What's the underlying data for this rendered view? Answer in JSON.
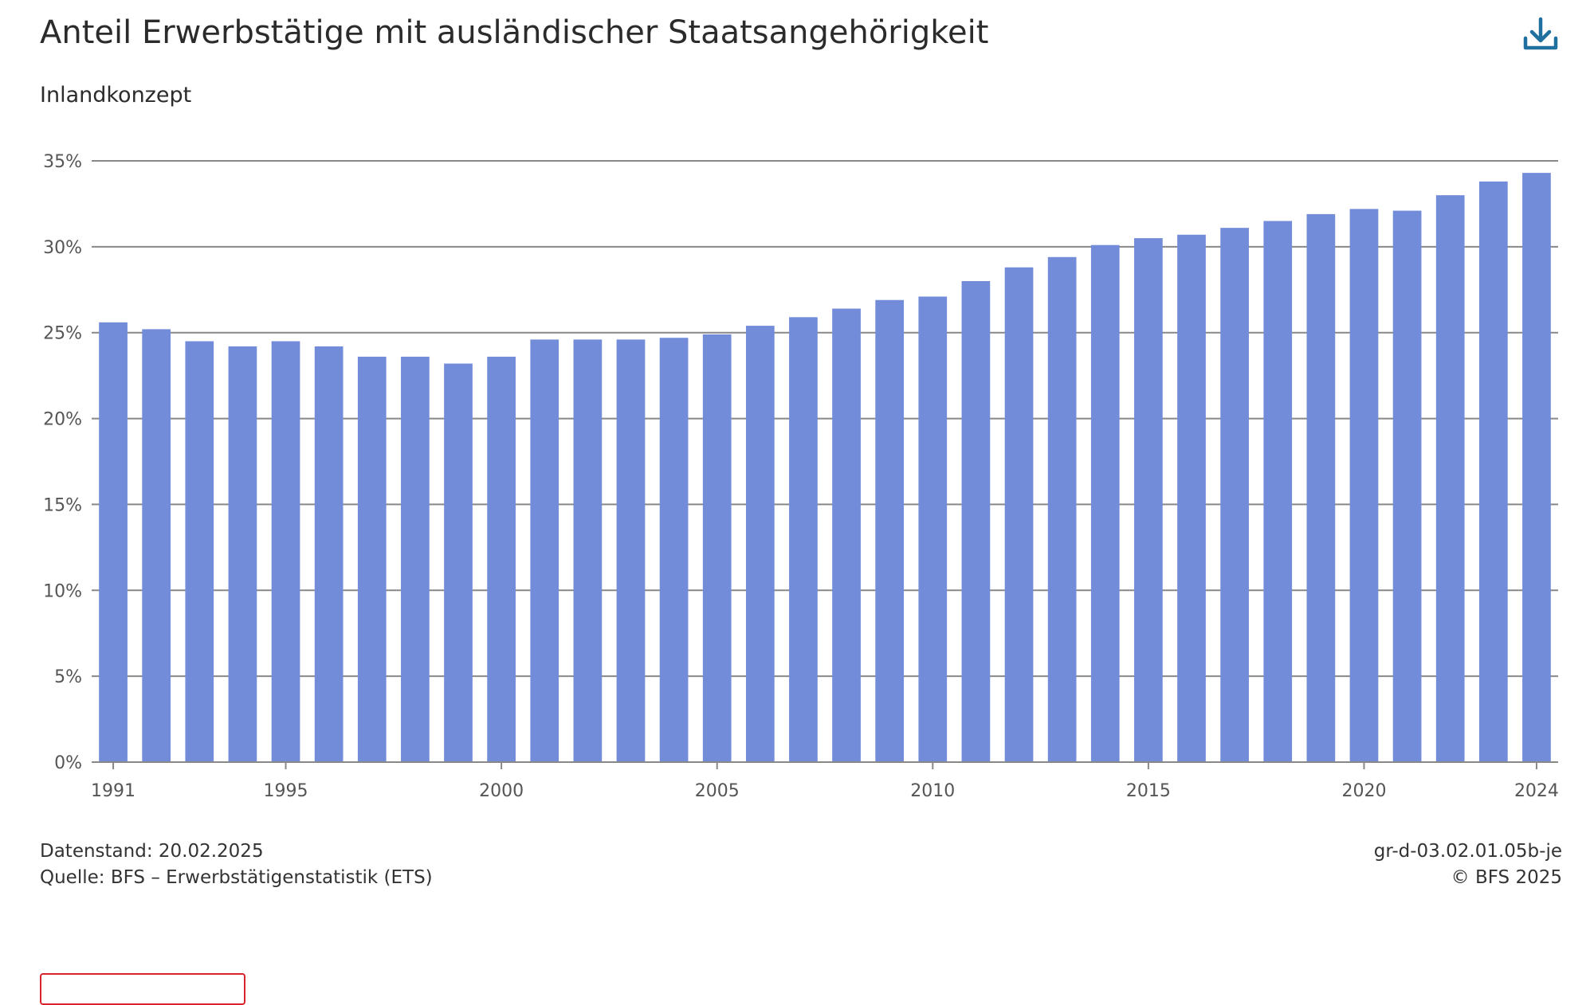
{
  "header": {
    "title": "Anteil Erwerbstätige mit ausländischer Staatsangehörigkeit",
    "subtitle": "Inlandkonzept",
    "download_icon": "download-icon"
  },
  "footer": {
    "datenstand": "Datenstand: 20.02.2025",
    "quelle": "Quelle: BFS – Erwerbstätigenstatistik (ETS)",
    "chart_id": "gr-d-03.02.01.05b-je",
    "copyright": "© BFS 2025"
  },
  "colors": {
    "bar": "#738cd9",
    "grid": "#888888",
    "accent": "#1f6f9f",
    "button_border": "#d8232a"
  },
  "chart_data": {
    "type": "bar",
    "title": "Anteil Erwerbstätige mit ausländischer Staatsangehörigkeit",
    "subtitle": "Inlandkonzept",
    "xlabel": "",
    "ylabel": "",
    "ylim": [
      0,
      35
    ],
    "y_ticks": [
      0,
      5,
      10,
      15,
      20,
      25,
      30,
      35
    ],
    "y_tick_labels": [
      "0%",
      "5%",
      "10%",
      "15%",
      "20%",
      "25%",
      "30%",
      "35%"
    ],
    "x_tick_labels": [
      "1991",
      "1995",
      "2000",
      "2005",
      "2010",
      "2015",
      "2020",
      "2024"
    ],
    "grid": true,
    "legend": "none",
    "categories": [
      1991,
      1992,
      1993,
      1994,
      1995,
      1996,
      1997,
      1998,
      1999,
      2000,
      2001,
      2002,
      2003,
      2004,
      2005,
      2006,
      2007,
      2008,
      2009,
      2010,
      2011,
      2012,
      2013,
      2014,
      2015,
      2016,
      2017,
      2018,
      2019,
      2020,
      2021,
      2022,
      2023,
      2024
    ],
    "values": [
      25.6,
      25.2,
      24.5,
      24.2,
      24.5,
      24.2,
      23.6,
      23.6,
      23.2,
      23.6,
      24.6,
      24.6,
      24.6,
      24.7,
      24.9,
      25.4,
      25.9,
      26.4,
      26.9,
      27.1,
      28.0,
      28.8,
      29.4,
      30.1,
      30.5,
      30.7,
      31.1,
      31.5,
      31.9,
      32.2,
      32.1,
      33.0,
      33.8,
      34.3
    ]
  }
}
